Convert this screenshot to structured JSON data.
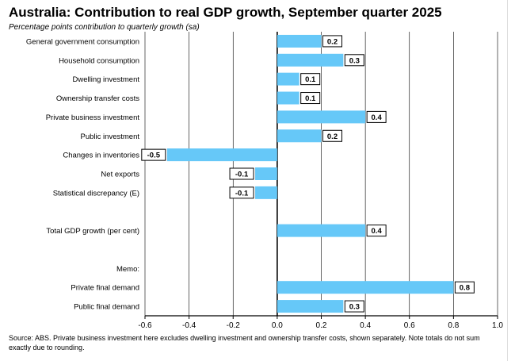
{
  "chart_data": {
    "type": "bar",
    "orientation": "horizontal",
    "title": "Australia: Contribution to real GDP growth, September quarter 2025",
    "subtitle": "Percentage points contribution to quarterly growth (sa)",
    "categories": [
      "General government consumption",
      "Household consumption",
      "Dwelling investment",
      "Ownership transfer costs",
      "Private business investment",
      "Public investment",
      "Changes in inventories",
      "Net exports",
      "Statistical discrepancy (E)",
      "",
      "Total GDP growth (per cent)",
      "",
      "Memo:",
      "Private final demand",
      "Public final demand"
    ],
    "values": [
      0.2,
      0.3,
      0.1,
      0.1,
      0.4,
      0.2,
      -0.5,
      -0.1,
      -0.1,
      null,
      0.4,
      null,
      null,
      0.8,
      0.3
    ],
    "data_labels": [
      "0.2",
      "0.3",
      "0.1",
      "0.1",
      "0.4",
      "0.2",
      "-0.5",
      "-0.1",
      "-0.1",
      "",
      "0.4",
      "",
      "",
      "0.8",
      "0.3"
    ],
    "xlim": [
      -0.6,
      1.0
    ],
    "xticks": [
      "-0.6",
      "-0.4",
      "-0.2",
      "0.0",
      "0.2",
      "0.4",
      "0.6",
      "0.8",
      "1.0"
    ],
    "grid": "vertical",
    "bar_color": "#66c8f8",
    "note": "Source: ABS. Private business investment here excludes dwelling investment and ownership transfer costs, shown separately.  Note totals do not sum exactly due to rounding."
  }
}
